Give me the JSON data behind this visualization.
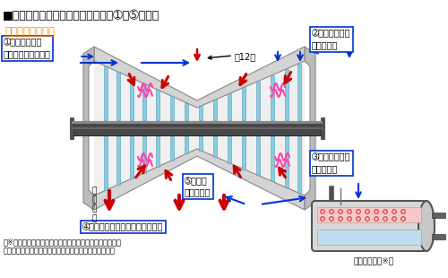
{
  "title": "■フラッシュバックのメカニズム（➀～➄の順）",
  "subtitle": "負荷しゃ断試験時",
  "bg_color": "#ffffff",
  "label1": "➀薒気量が減少\nまたは薒気がしゃ断",
  "label2": "➁タービン内の\n圧力が低下",
  "label3": "➂給水加熱器の\n圧力が低下",
  "label4": "➃給水加熱器内で減圧永腏が発生",
  "label5": "➄薒気が\n高速で逆流",
  "label_stage": "第12段",
  "label_condenser": "復\n水\n器\nへ",
  "label_heater": "給水加熱器（※）",
  "footnote1": "（※）原子炉の熱効率向上のため、タービンからの薒気を",
  "footnote2": "　利用して原子炉へ給水される水を加熱するための機器",
  "turb_casing_color": "#d4d4d4",
  "turb_inner_color": "#e8e8e8",
  "turb_dark_color": "#a8a8a8",
  "shaft_color1": "#484848",
  "shaft_color2": "#707070",
  "shaft_hi_color": "#909090",
  "blade_cyan": "#88ccdd",
  "blade_gray": "#c0c0c0",
  "red_color": "#cc0000",
  "blue_color": "#0033cc",
  "pink_color": "#ff44aa",
  "heater_gray": "#c8c8c8",
  "heater_pink": "#f8c8c8",
  "heater_blue": "#c0ddf0",
  "bubble_color": "#cc2222"
}
